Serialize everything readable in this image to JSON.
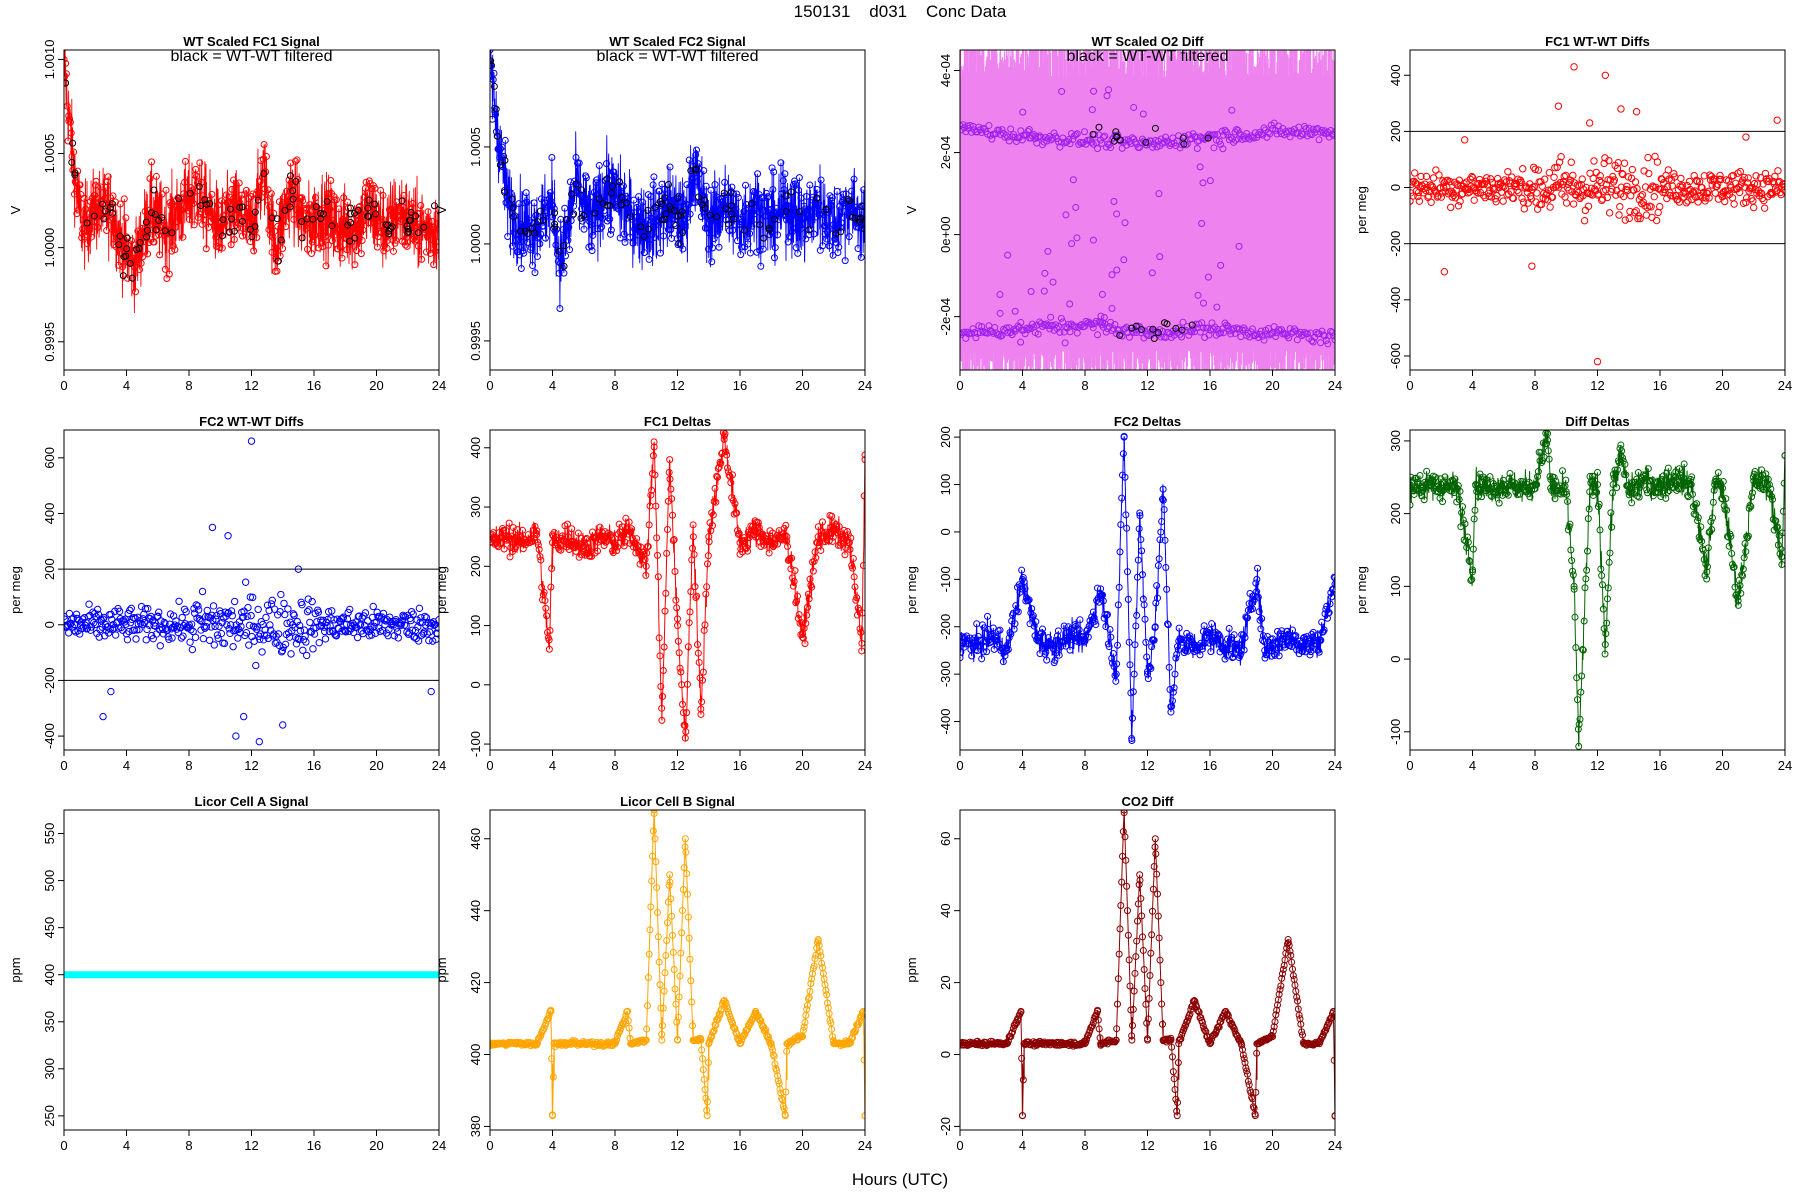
{
  "page_title": "150131    d031    Conc Data",
  "x_axis_title": "Hours (UTC)",
  "colors": {
    "red": "#ff0000",
    "blue": "#0000ff",
    "violet": "#ee82ee",
    "purple": "#a020f0",
    "green": "#006400",
    "cyan": "#00ffff",
    "orange": "#ffa500",
    "darkred": "#8b0000",
    "black": "#000000"
  },
  "chart_data": [
    {
      "id": "fc1-signal",
      "type": "line",
      "title": "WT Scaled FC1 Signal",
      "annotation": "black = WT-WT filtered",
      "ylabel": "V",
      "xlim": [
        0,
        24
      ],
      "ylim": [
        0.99935,
        1.00105
      ],
      "yticks": [
        0.9995,
        1.0,
        1.0005,
        1.001
      ],
      "ytick_labels": [
        "0.9995",
        "1.0000",
        "1.0005",
        "1.0010"
      ],
      "xticks": [
        0,
        4,
        8,
        12,
        16,
        20,
        24
      ],
      "color": "red",
      "filtered_color": "black",
      "series": [
        {
          "name": "FC1 signal",
          "x": [
            0,
            0.3,
            0.8,
            1.2,
            2,
            3,
            3.8,
            4.5,
            5.5,
            6.5,
            7.5,
            8.5,
            9.2,
            10,
            11,
            12,
            12.8,
            13.5,
            14.5,
            15.5,
            16.5,
            17.5,
            18.5,
            19.5,
            20.5,
            21.5,
            22.5,
            23.5,
            24
          ],
          "y": [
            1.001,
            1.0007,
            1.0003,
            1.0001,
            1.0002,
            1.0002,
            1.0,
            0.9999,
            1.0002,
            1.0001,
            1.0002,
            1.0003,
            1.0002,
            1.0001,
            1.0002,
            1.0001,
            1.0004,
            1.0,
            1.0003,
            1.0001,
            1.0002,
            1.0001,
            1.0001,
            1.0002,
            1.0001,
            1.0002,
            1.0001,
            1.0001,
            1.0001
          ]
        }
      ]
    },
    {
      "id": "fc2-signal",
      "type": "line",
      "title": "WT Scaled FC2 Signal",
      "annotation": "black = WT-WT filtered",
      "ylabel": "V",
      "xlim": [
        0,
        24
      ],
      "ylim": [
        0.99935,
        1.001
      ],
      "yticks": [
        0.9995,
        1.0,
        1.0005
      ],
      "ytick_labels": [
        "0.9995",
        "1.0000",
        "1.0005"
      ],
      "xticks": [
        0,
        4,
        8,
        12,
        16,
        20,
        24
      ],
      "color": "blue",
      "filtered_color": "black",
      "series": [
        {
          "name": "FC2 signal",
          "x": [
            0,
            0.3,
            0.8,
            1.2,
            2,
            3,
            4,
            4.5,
            5.5,
            6.5,
            7.5,
            8.5,
            9.5,
            10.5,
            11.5,
            12.5,
            13,
            14,
            15,
            16,
            17,
            18,
            19,
            20,
            21,
            22,
            23,
            24
          ],
          "y": [
            1.001,
            1.0007,
            1.0004,
            1.0002,
            1.0001,
            1.0001,
            1.0002,
            0.9999,
            1.0003,
            1.0001,
            1.0003,
            1.0002,
            1.0001,
            1.0001,
            1.0002,
            1.0001,
            1.0004,
            1.0001,
            1.0002,
            1.0001,
            1.0002,
            1.0001,
            1.0002,
            1.0001,
            1.0002,
            1.0001,
            1.0002,
            1.0001
          ]
        }
      ]
    },
    {
      "id": "o2-diff",
      "type": "line",
      "title": "WT Scaled O2 Diff",
      "annotation": "black = WT-WT filtered",
      "ylabel": "V",
      "xlim": [
        0,
        24
      ],
      "ylim": [
        -0.00033,
        0.00045
      ],
      "yticks": [
        -0.0002,
        0,
        0.0002,
        0.0004
      ],
      "ytick_labels": [
        "-2e-04",
        "0e+00",
        "2e-04",
        "4e-04"
      ],
      "xticks": [
        0,
        4,
        8,
        12,
        16,
        20,
        24
      ],
      "color": "violet",
      "point_color": "purple",
      "filtered_color": "black",
      "series": [
        {
          "name": "upper band",
          "x": [
            0,
            4,
            8,
            12,
            16,
            20,
            24
          ],
          "y": [
            0.00026,
            0.00024,
            0.00023,
            0.00022,
            0.00024,
            0.00025,
            0.00025
          ]
        },
        {
          "name": "lower band",
          "x": [
            0,
            4,
            8,
            12,
            16,
            20,
            24
          ],
          "y": [
            -0.00024,
            -0.00023,
            -0.00022,
            -0.00024,
            -0.00023,
            -0.00024,
            -0.00025
          ]
        }
      ]
    },
    {
      "id": "fc1-wtwt",
      "type": "scatter",
      "title": "FC1 WT-WT Diffs",
      "ylabel": "per meg",
      "xlim": [
        0,
        24
      ],
      "ylim": [
        -650,
        490
      ],
      "yticks": [
        -600,
        -400,
        -200,
        0,
        200,
        400
      ],
      "ytick_labels": [
        "-600",
        "-400",
        "-200",
        "0",
        "200",
        "400"
      ],
      "xticks": [
        0,
        4,
        8,
        12,
        16,
        20,
        24
      ],
      "hlines": [
        200,
        -200
      ],
      "color": "red",
      "series": [
        {
          "name": "FC1 WT-WT",
          "x": [
            2.2,
            3.5,
            7.8,
            9.5,
            10.5,
            11.5,
            12,
            12.5,
            13.5,
            14.5,
            21.5,
            23.5
          ],
          "y": [
            -300,
            170,
            -280,
            290,
            430,
            230,
            -620,
            400,
            280,
            270,
            180,
            240
          ]
        }
      ]
    },
    {
      "id": "fc2-wtwt",
      "type": "scatter",
      "title": "FC2 WT-WT Diffs",
      "ylabel": "per meg",
      "xlim": [
        0,
        24
      ],
      "ylim": [
        -450,
        700
      ],
      "yticks": [
        -400,
        -200,
        0,
        200,
        400,
        600
      ],
      "ytick_labels": [
        "-400",
        "-200",
        "0",
        "200",
        "400",
        "600"
      ],
      "xticks": [
        0,
        4,
        8,
        12,
        16,
        20,
        24
      ],
      "hlines": [
        200,
        -200
      ],
      "color": "blue",
      "series": [
        {
          "name": "FC2 WT-WT",
          "x": [
            2.5,
            3,
            9.5,
            10.5,
            11,
            11.5,
            12,
            12.5,
            14,
            15,
            23.5
          ],
          "y": [
            -330,
            -240,
            350,
            320,
            -400,
            -330,
            660,
            -420,
            -360,
            200,
            -240
          ]
        }
      ]
    },
    {
      "id": "fc1-deltas",
      "type": "line",
      "title": "FC1 Deltas",
      "ylabel": "per meg",
      "xlim": [
        0,
        24
      ],
      "ylim": [
        -110,
        430
      ],
      "yticks": [
        -100,
        0,
        100,
        200,
        300,
        400
      ],
      "ytick_labels": [
        "-100",
        "0",
        "100",
        "200",
        "300",
        "400"
      ],
      "xticks": [
        0,
        4,
        8,
        12,
        16,
        20,
        24
      ],
      "color": "red",
      "series": [
        {
          "name": "FC1 deltas",
          "x": [
            0,
            1,
            2,
            3,
            3.8,
            4,
            5,
            6,
            7,
            8,
            9,
            10,
            10.5,
            11,
            11.5,
            12,
            12.5,
            13,
            13.5,
            14,
            15,
            16,
            17,
            18,
            19,
            20,
            21,
            22,
            23,
            23.8,
            24
          ],
          "y": [
            240,
            250,
            240,
            260,
            60,
            240,
            250,
            230,
            250,
            240,
            260,
            200,
            410,
            -60,
            380,
            100,
            -90,
            270,
            -50,
            250,
            420,
            240,
            260,
            240,
            250,
            80,
            250,
            260,
            240,
            70,
            380
          ]
        }
      ]
    },
    {
      "id": "fc2-deltas",
      "type": "line",
      "title": "FC2 Deltas",
      "ylabel": "per meg",
      "xlim": [
        0,
        24
      ],
      "ylim": [
        -460,
        215
      ],
      "yticks": [
        -400,
        -300,
        -200,
        -100,
        0,
        100,
        200
      ],
      "ytick_labels": [
        "-400",
        "-300",
        "-200",
        "-100",
        "0",
        "100",
        "200"
      ],
      "xticks": [
        0,
        4,
        8,
        12,
        16,
        20,
        24
      ],
      "color": "blue",
      "series": [
        {
          "name": "FC2 deltas",
          "x": [
            0,
            1,
            2,
            3,
            4,
            5,
            6,
            7,
            8,
            9,
            10,
            10.5,
            11,
            11.5,
            12,
            12.5,
            13,
            13.5,
            14,
            15,
            16,
            17,
            18,
            19,
            19.5,
            20,
            21,
            22,
            23,
            24
          ],
          "y": [
            -230,
            -240,
            -220,
            -250,
            -100,
            -230,
            -240,
            -220,
            -230,
            -120,
            -300,
            200,
            -440,
            40,
            -300,
            -200,
            90,
            -380,
            -230,
            -240,
            -220,
            -240,
            -250,
            -100,
            -250,
            -240,
            -220,
            -240,
            -230,
            -110
          ]
        }
      ]
    },
    {
      "id": "diff-deltas",
      "type": "line",
      "title": "Diff Deltas",
      "ylabel": "per meg",
      "xlim": [
        0,
        24
      ],
      "ylim": [
        -125,
        315
      ],
      "yticks": [
        -100,
        0,
        100,
        200,
        300
      ],
      "ytick_labels": [
        "-100",
        "0",
        "100",
        "200",
        "300"
      ],
      "xticks": [
        0,
        4,
        8,
        12,
        16,
        20,
        24
      ],
      "color": "green",
      "series": [
        {
          "name": "diff deltas",
          "x": [
            0,
            1,
            2,
            3,
            4,
            4.2,
            5,
            6,
            7,
            8,
            8.8,
            9,
            10,
            10.5,
            10.8,
            11.5,
            12,
            12.5,
            13,
            13.5,
            14,
            15,
            16,
            17,
            18,
            19,
            19.5,
            20,
            21,
            22,
            23,
            23.8,
            24
          ],
          "y": [
            240,
            235,
            240,
            235,
            120,
            240,
            235,
            240,
            235,
            240,
            310,
            235,
            230,
            100,
            -120,
            230,
            240,
            20,
            240,
            280,
            230,
            245,
            240,
            250,
            240,
            120,
            240,
            235,
            80,
            245,
            240,
            130,
            280
          ]
        }
      ]
    },
    {
      "id": "licor-a",
      "type": "line",
      "title": "Licor Cell A Signal",
      "ylabel": "ppm",
      "xlim": [
        0,
        24
      ],
      "ylim": [
        235,
        575
      ],
      "yticks": [
        250,
        300,
        350,
        400,
        450,
        500,
        550
      ],
      "ytick_labels": [
        "250",
        "300",
        "350",
        "400",
        "450",
        "500",
        "550"
      ],
      "xticks": [
        0,
        4,
        8,
        12,
        16,
        20,
        24
      ],
      "color": "cyan",
      "series": [
        {
          "name": "Cell A",
          "x": [
            0,
            24
          ],
          "y": [
            400,
            400
          ]
        }
      ]
    },
    {
      "id": "licor-b",
      "type": "line",
      "title": "Licor Cell B Signal",
      "ylabel": "ppm",
      "xlim": [
        0,
        24
      ],
      "ylim": [
        379,
        468
      ],
      "yticks": [
        380,
        400,
        420,
        440,
        460
      ],
      "ytick_labels": [
        "380",
        "400",
        "420",
        "440",
        "460"
      ],
      "xticks": [
        0,
        4,
        8,
        12,
        16,
        20,
        24
      ],
      "color": "orange",
      "series": [
        {
          "name": "Cell B",
          "x": [
            0,
            1,
            2,
            3,
            3.9,
            4,
            4.1,
            5,
            6,
            7,
            8,
            8.8,
            9,
            10,
            10.5,
            11,
            11.5,
            12,
            12.5,
            13,
            13.5,
            13.9,
            14,
            15,
            16,
            17,
            18,
            18.9,
            19,
            20,
            21,
            22,
            23,
            23.9,
            24
          ],
          "y": [
            403,
            403,
            403,
            403,
            412,
            383,
            403,
            403,
            403,
            403,
            403,
            412,
            403,
            404,
            468,
            404,
            450,
            404,
            460,
            404,
            404,
            383,
            403,
            415,
            403,
            412,
            403,
            383,
            403,
            405,
            432,
            403,
            403,
            412,
            383
          ]
        }
      ]
    },
    {
      "id": "co2-diff",
      "type": "line",
      "title": "CO2 Diff",
      "ylabel": "ppm",
      "xlim": [
        0,
        24
      ],
      "ylim": [
        -21,
        68
      ],
      "yticks": [
        -20,
        0,
        20,
        40,
        60
      ],
      "ytick_labels": [
        "-20",
        "0",
        "20",
        "40",
        "60"
      ],
      "xticks": [
        0,
        4,
        8,
        12,
        16,
        20,
        24
      ],
      "color": "darkred",
      "series": [
        {
          "name": "CO2 diff",
          "x": [
            0,
            1,
            2,
            3,
            3.9,
            4,
            4.1,
            5,
            6,
            7,
            8,
            8.8,
            9,
            10,
            10.5,
            11,
            11.5,
            12,
            12.5,
            13,
            13.5,
            13.9,
            14,
            15,
            16,
            17,
            18,
            18.9,
            19,
            20,
            21,
            22,
            23,
            23.9,
            24
          ],
          "y": [
            3,
            3,
            3,
            3,
            12,
            -17,
            3,
            3,
            3,
            3,
            3,
            12,
            3,
            4,
            68,
            4,
            50,
            4,
            60,
            4,
            4,
            -17,
            3,
            15,
            3,
            12,
            3,
            -17,
            3,
            5,
            32,
            3,
            3,
            12,
            -17
          ]
        }
      ]
    }
  ]
}
